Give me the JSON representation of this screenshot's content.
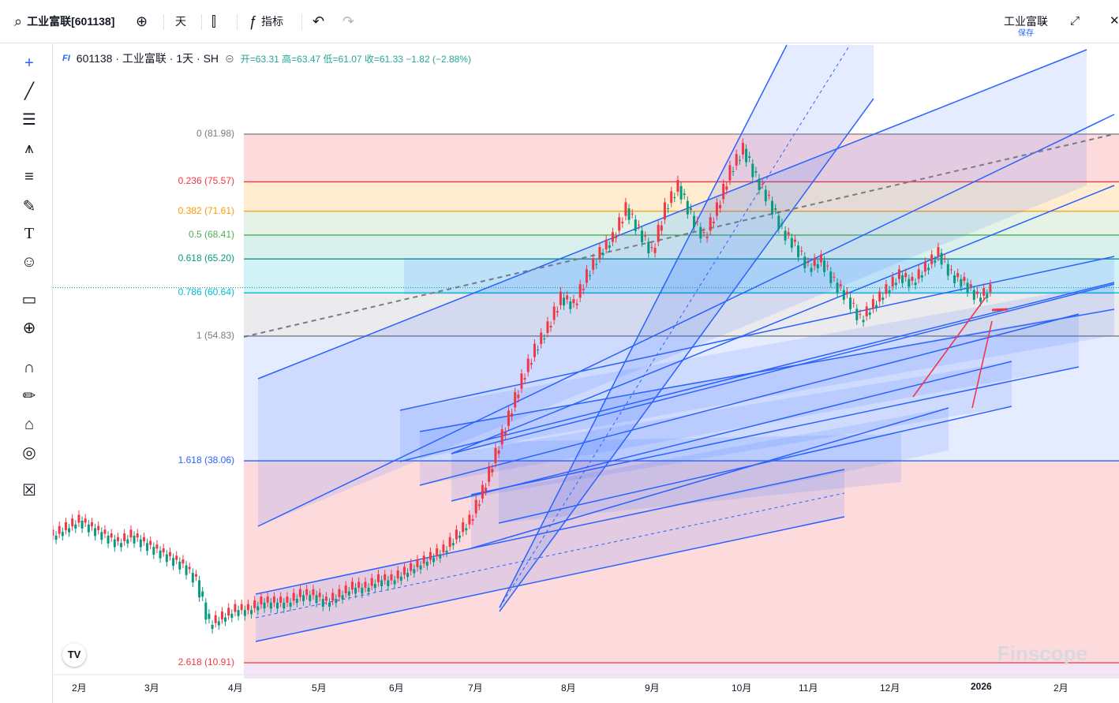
{
  "toolbar": {
    "symbol": "工业富联[601138]",
    "interval": "天",
    "indicators": "指标",
    "name": "工业富联",
    "save": "保存"
  },
  "legend": {
    "title": "601138 · 工业富联 · 1天 · SH",
    "ohlc": "开=63.31 高=63.47 低=61.07 收=61.33 −1.82 (−2.88%)"
  },
  "fib_levels": [
    {
      "label": "0 (81.98)",
      "value": 81.98,
      "color": "#787b86"
    },
    {
      "label": "0.236 (75.57)",
      "value": 75.57,
      "color": "#f23645"
    },
    {
      "label": "0.382 (71.61)",
      "value": 71.61,
      "color": "#ff9800"
    },
    {
      "label": "0.5 (68.41)",
      "value": 68.41,
      "color": "#4caf50"
    },
    {
      "label": "0.618 (65.20)",
      "value": 65.2,
      "color": "#089981"
    },
    {
      "label": "0.786 (60.64)",
      "value": 60.64,
      "color": "#00bcd4"
    },
    {
      "label": "1 (54.83)",
      "value": 54.83,
      "color": "#787b86"
    },
    {
      "label": "1.618 (38.06)",
      "value": 38.06,
      "color": "#2962ff"
    },
    {
      "label": "2.618 (10.91)",
      "value": 10.91,
      "color": "#f23645"
    }
  ],
  "x_axis": [
    "2月",
    "3月",
    "4月",
    "5月",
    "6月",
    "7月",
    "8月",
    "9月",
    "10月",
    "11月",
    "12月",
    "2026",
    "2月"
  ],
  "watermark": "Finscope",
  "tv_logo": "TV",
  "icons": [
    "search-icon",
    "add-icon",
    "candles-icon",
    "fx-icon",
    "undo-icon",
    "redo-icon",
    "chevron-down-icon",
    "fullscreen-icon",
    "close-icon",
    "crosshair-icon",
    "trendline-icon",
    "fib-icon",
    "pattern-icon",
    "measure-icon",
    "brush-icon",
    "text-icon",
    "emoji-icon",
    "ruler-icon",
    "zoom-icon",
    "magnet-icon",
    "lock-draw-icon",
    "lock-icon",
    "eye-icon",
    "trash-icon"
  ],
  "colors": {
    "up": "#f23645",
    "down": "#089981",
    "accent": "#2962ff"
  },
  "chart_data": {
    "type": "candlestick",
    "ylim": [
      5,
      95
    ],
    "price_last": 61.33,
    "close_series": [
      28,
      29,
      30,
      29,
      28,
      27,
      28,
      27,
      26,
      25,
      24,
      22,
      16,
      17,
      18,
      18,
      19,
      19,
      19,
      20,
      20,
      19,
      20,
      21,
      21,
      22,
      22,
      23,
      24,
      25,
      26,
      28,
      30,
      34,
      39,
      44,
      49,
      53,
      56,
      60,
      59,
      63,
      66,
      68,
      72,
      69,
      66,
      72,
      75,
      71,
      68,
      72,
      77,
      80,
      76,
      73,
      69,
      67,
      64,
      65,
      62,
      60,
      57,
      59,
      61,
      63,
      62,
      64,
      66,
      63,
      62,
      60,
      61
    ]
  }
}
